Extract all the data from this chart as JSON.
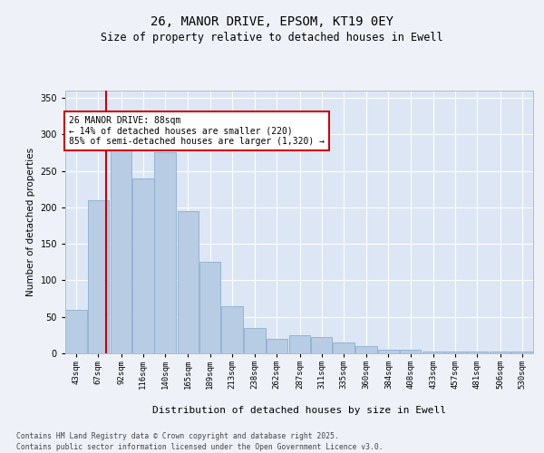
{
  "title_line1": "26, MANOR DRIVE, EPSOM, KT19 0EY",
  "title_line2": "Size of property relative to detached houses in Ewell",
  "xlabel": "Distribution of detached houses by size in Ewell",
  "ylabel": "Number of detached properties",
  "annotation_title": "26 MANOR DRIVE: 88sqm",
  "annotation_line2": "← 14% of detached houses are smaller (220)",
  "annotation_line3": "85% of semi-detached houses are larger (1,320) →",
  "categories": [
    "43sqm",
    "67sqm",
    "92sqm",
    "116sqm",
    "140sqm",
    "165sqm",
    "189sqm",
    "213sqm",
    "238sqm",
    "262sqm",
    "287sqm",
    "311sqm",
    "335sqm",
    "360sqm",
    "384sqm",
    "408sqm",
    "433sqm",
    "457sqm",
    "481sqm",
    "506sqm",
    "530sqm"
  ],
  "bin_edges": [
    43,
    67,
    92,
    116,
    140,
    165,
    189,
    213,
    238,
    262,
    287,
    311,
    335,
    360,
    384,
    408,
    433,
    457,
    481,
    506,
    530
  ],
  "bin_width": 24,
  "values": [
    60,
    210,
    285,
    240,
    275,
    195,
    125,
    65,
    35,
    20,
    25,
    22,
    15,
    10,
    5,
    5,
    3,
    2,
    3,
    2,
    3
  ],
  "bar_color": "#b8cce4",
  "bar_edge_color": "#8ab0d0",
  "vline_color": "#cc0000",
  "vline_x": 88,
  "background_color": "#eef2f8",
  "plot_background": "#dce6f5",
  "grid_color": "#ffffff",
  "annotation_box_facecolor": "#ffffff",
  "annotation_box_edgecolor": "#cc0000",
  "ylim": [
    0,
    360
  ],
  "yticks": [
    0,
    50,
    100,
    150,
    200,
    250,
    300,
    350
  ],
  "footer_line1": "Contains HM Land Registry data © Crown copyright and database right 2025.",
  "footer_line2": "Contains public sector information licensed under the Open Government Licence v3.0."
}
